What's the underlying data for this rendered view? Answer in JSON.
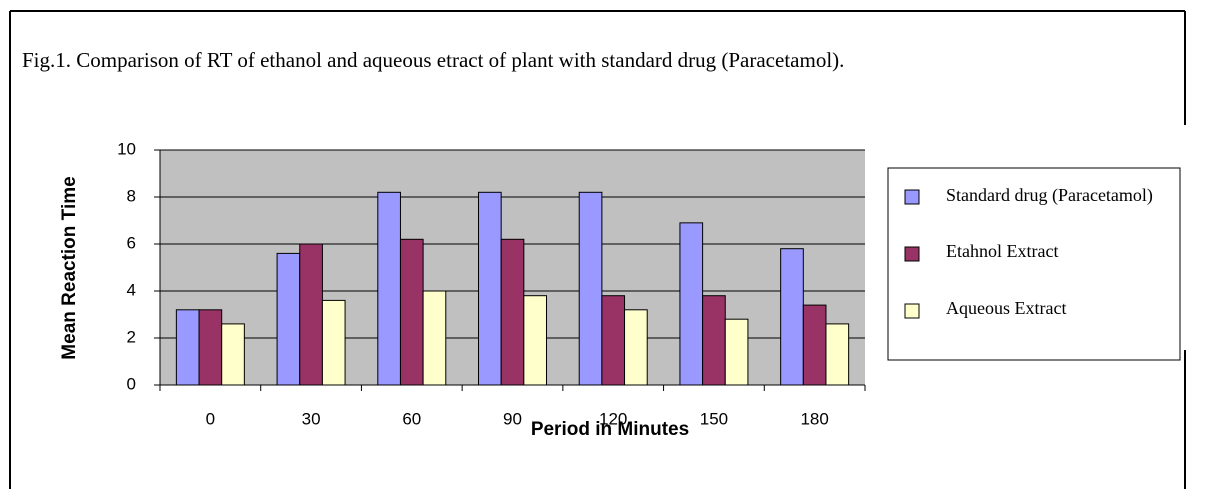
{
  "chart_data": {
    "type": "bar",
    "caption": "Fig.1. Comparison of RT of ethanol and aqueous etract of plant with standard drug (Paracetamol).",
    "xlabel": "Period in Minutes",
    "ylabel": "Mean Reaction Time",
    "categories": [
      "0",
      "30",
      "60",
      "90",
      "120",
      "150",
      "180"
    ],
    "series": [
      {
        "name": "Standard drug (Paracetamol)",
        "color": "#9999ff",
        "values": [
          3.2,
          5.6,
          8.2,
          8.2,
          8.2,
          6.9,
          5.8
        ]
      },
      {
        "name": "Etahnol Extract",
        "color": "#993366",
        "values": [
          3.2,
          6.0,
          6.2,
          6.2,
          3.8,
          3.8,
          3.4
        ]
      },
      {
        "name": "Aqueous Extract",
        "color": "#ffffcc",
        "values": [
          2.6,
          3.6,
          4.0,
          3.8,
          3.2,
          2.8,
          2.6
        ]
      }
    ],
    "ylim": [
      0,
      10
    ],
    "yticks": [
      0,
      2,
      4,
      6,
      8,
      10
    ],
    "grid": true,
    "legend": "right"
  }
}
